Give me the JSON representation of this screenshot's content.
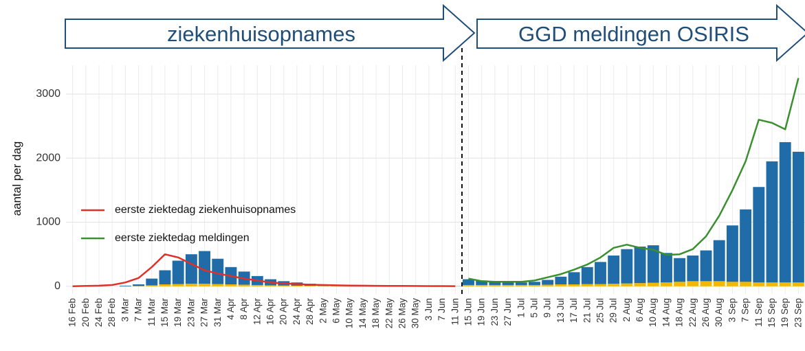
{
  "chart_data": {
    "type": "bar",
    "annotations": [
      "ziekenhuisopnames",
      "GGD meldingen OSIRIS"
    ],
    "ylabel": "aantal per dag",
    "ylim": [
      -120,
      3450
    ],
    "yticks": [
      0,
      1000,
      2000,
      3000
    ],
    "grid": true,
    "legend": "left",
    "categories": [
      "16 Feb",
      "20 Feb",
      "24 Feb",
      "28 Feb",
      "3 Mar",
      "7 Mar",
      "11 Mar",
      "15 Mar",
      "19 Mar",
      "23 Mar",
      "27 Mar",
      "31 Mar",
      "4 Apr",
      "8 Apr",
      "12 Apr",
      "16 Apr",
      "20 Apr",
      "24 Apr",
      "28 Apr",
      "2 May",
      "6 May",
      "10 May",
      "14 May",
      "18 May",
      "22 May",
      "26 May",
      "30 May",
      "3 Jun",
      "7 Jun",
      "11 Jun",
      "15 Jun",
      "19 Jun",
      "23 Jun",
      "27 Jun",
      "1 Jul",
      "5 Jul",
      "9 Jul",
      "13 Jul",
      "17 Jul",
      "21 Jul",
      "25 Jul",
      "29 Jul",
      "2 Aug",
      "6 Aug",
      "10 Aug",
      "14 Aug",
      "18 Aug",
      "22 Aug",
      "26 Aug",
      "30 Aug",
      "3 Sep",
      "7 Sep",
      "11 Sep",
      "15 Sep",
      "19 Sep",
      "23 Sep"
    ],
    "bars": [
      {
        "color": "#f5b800",
        "values": [
          0,
          0,
          0,
          0,
          0,
          5,
          15,
          30,
          35,
          40,
          40,
          35,
          30,
          25,
          20,
          15,
          12,
          10,
          8,
          6,
          5,
          4,
          3,
          2,
          2,
          2,
          1,
          1,
          1,
          1,
          20,
          20,
          20,
          20,
          20,
          20,
          25,
          30,
          30,
          35,
          35,
          40,
          45,
          50,
          55,
          60,
          70,
          80,
          80,
          80,
          70,
          70,
          60,
          60,
          60,
          60
        ]
      },
      {
        "color": "#1f6ca8",
        "values": [
          0,
          0,
          0,
          0,
          10,
          25,
          105,
          220,
          365,
          460,
          510,
          395,
          270,
          205,
          140,
          95,
          68,
          50,
          32,
          24,
          15,
          11,
          7,
          6,
          4,
          3,
          3,
          2,
          2,
          2,
          90,
          70,
          50,
          40,
          40,
          50,
          75,
          120,
          190,
          265,
          345,
          440,
          535,
          570,
          585,
          460,
          370,
          400,
          480,
          640,
          880,
          1130,
          1490,
          1890,
          2190,
          2040
        ]
      }
    ],
    "series": [
      {
        "name": "eerste ziektedag ziekenhuisopnames",
        "color": "#e0302a",
        "values": [
          0,
          5,
          10,
          20,
          60,
          130,
          300,
          500,
          450,
          350,
          250,
          200,
          160,
          120,
          90,
          60,
          45,
          35,
          25,
          20,
          15,
          12,
          10,
          8,
          6,
          5,
          4,
          3,
          3,
          2,
          null,
          null,
          null,
          null,
          null,
          null,
          null,
          null,
          null,
          null,
          null,
          null,
          null,
          null,
          null,
          null,
          null,
          null,
          null,
          null,
          null,
          null,
          null,
          null,
          null,
          null
        ]
      },
      {
        "name": "eerste ziektedag meldingen",
        "color": "#3a8f2e",
        "values": [
          null,
          null,
          null,
          null,
          null,
          null,
          null,
          null,
          null,
          null,
          null,
          null,
          null,
          null,
          null,
          null,
          null,
          null,
          null,
          null,
          null,
          null,
          null,
          null,
          null,
          null,
          null,
          null,
          null,
          null,
          120,
          80,
          70,
          70,
          70,
          90,
          140,
          190,
          260,
          340,
          450,
          600,
          650,
          600,
          570,
          490,
          500,
          580,
          780,
          1100,
          1500,
          1950,
          2600,
          2550,
          2450,
          3250
        ]
      }
    ]
  }
}
